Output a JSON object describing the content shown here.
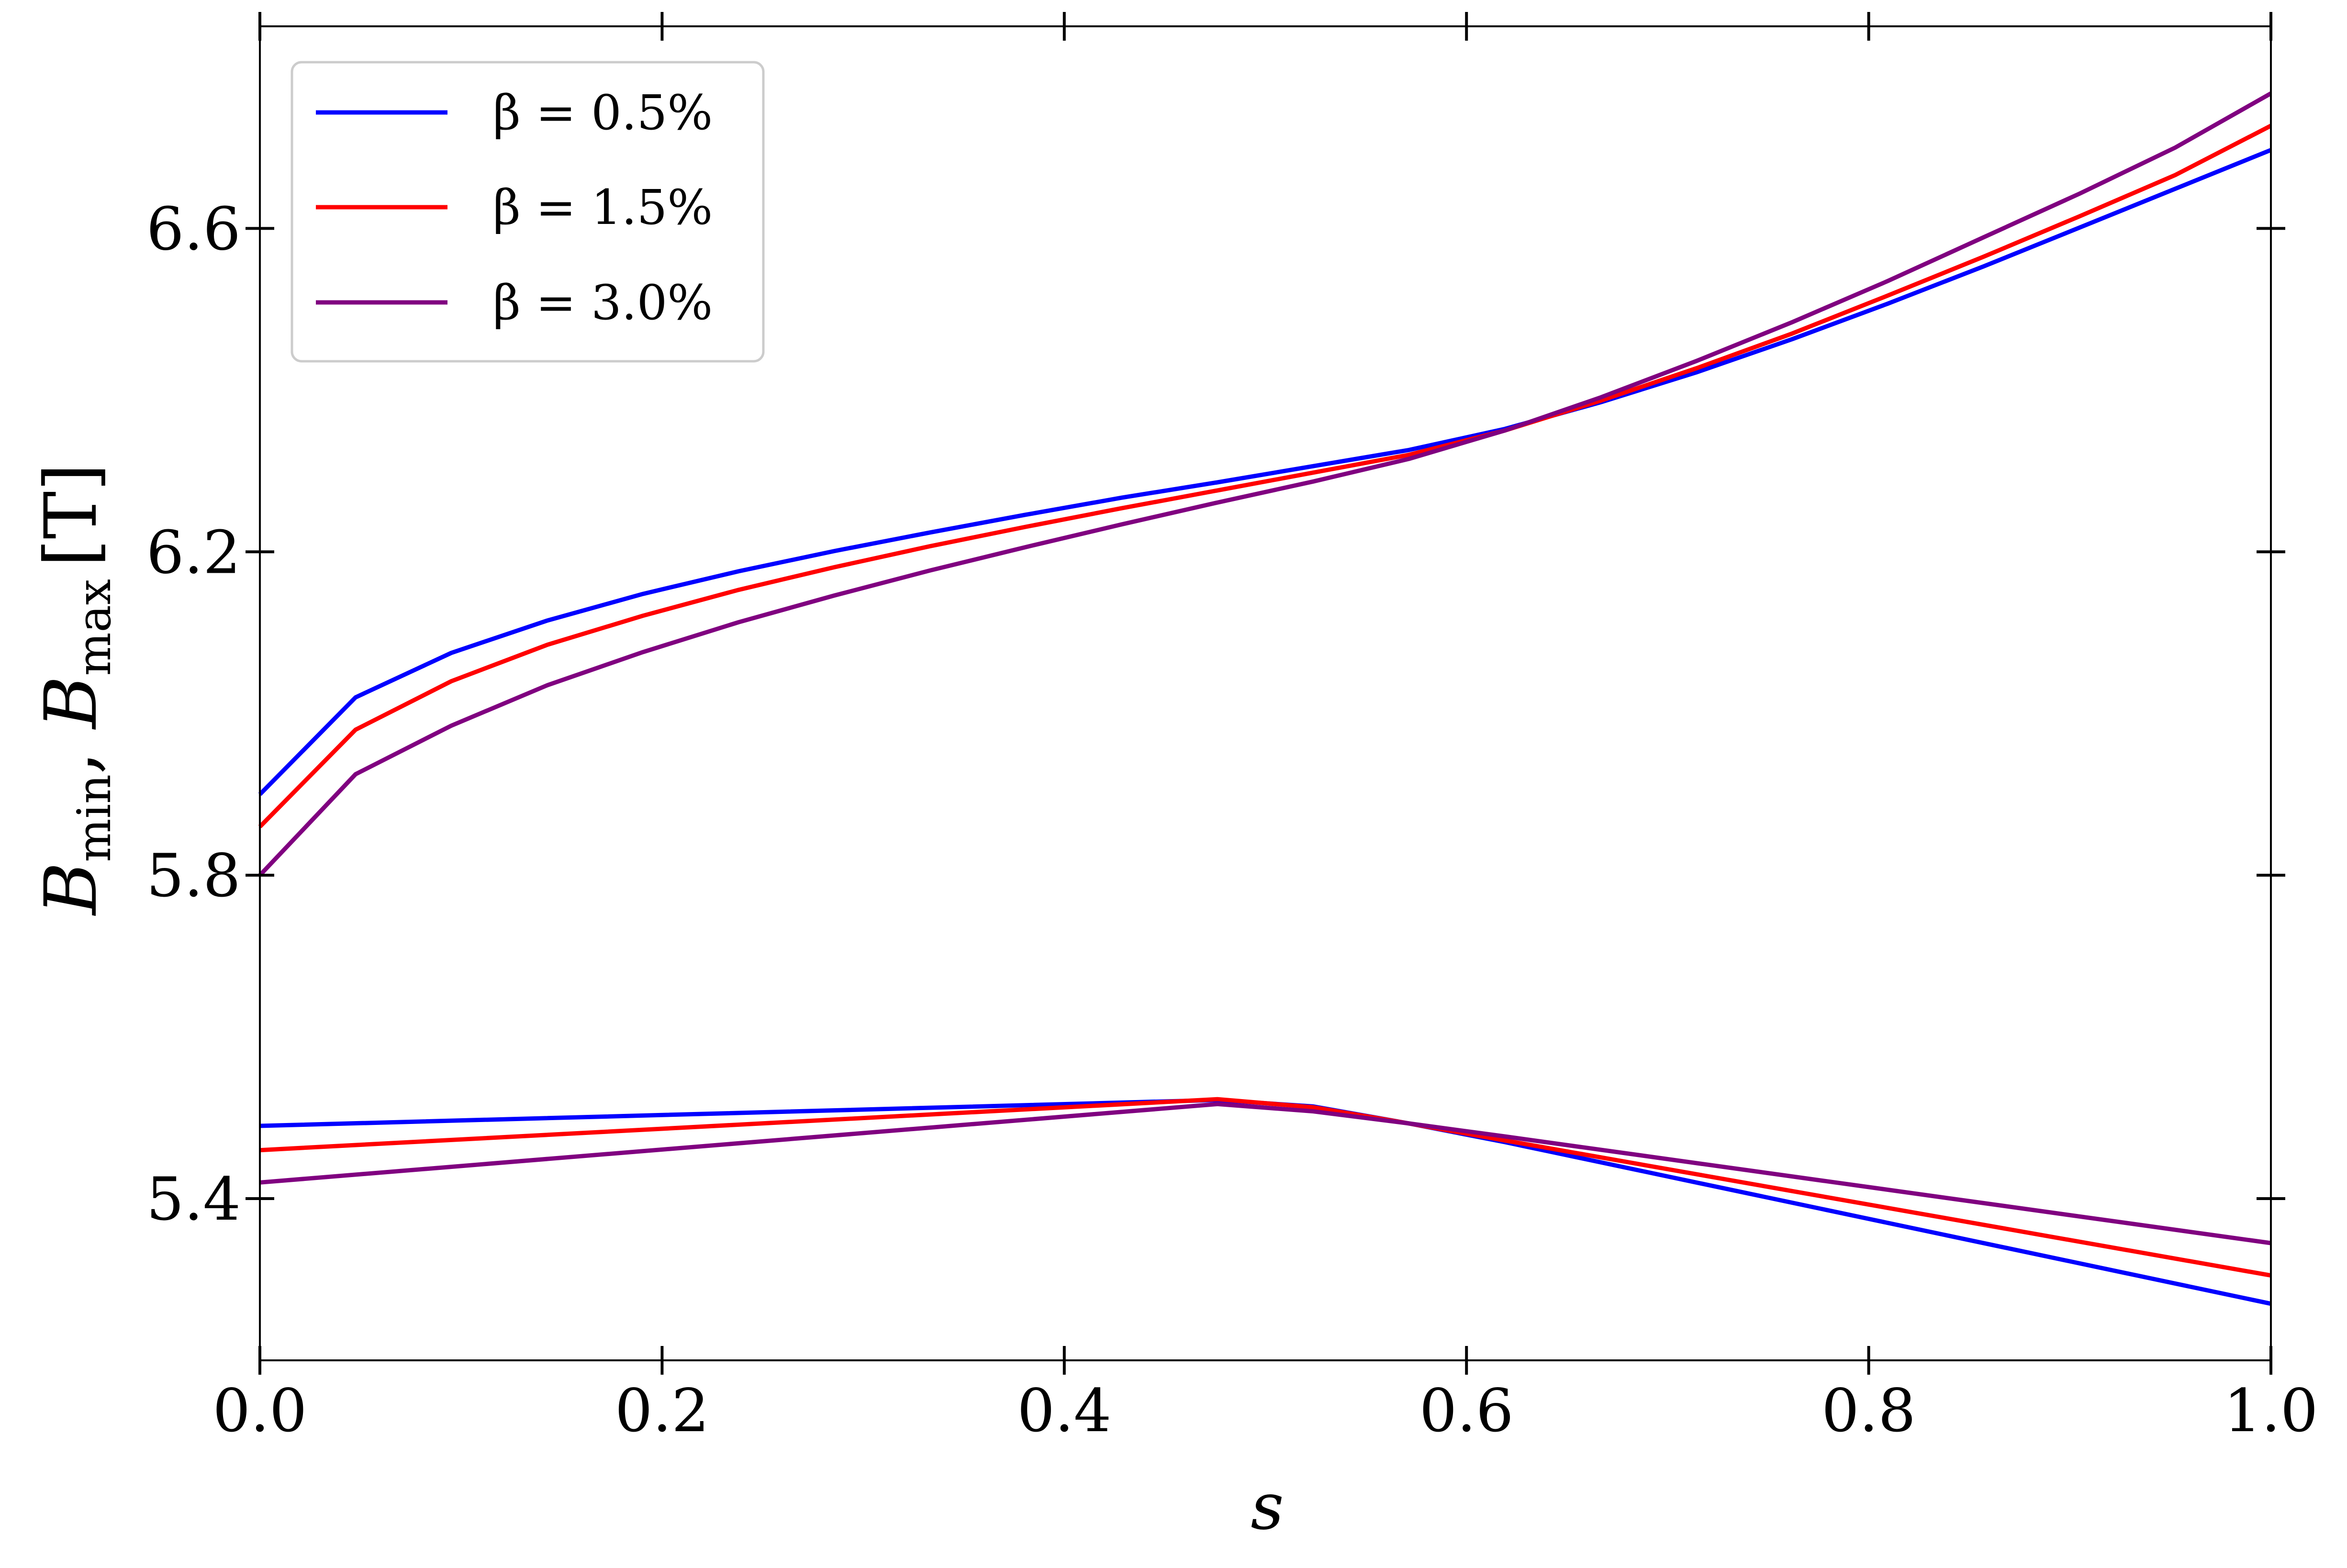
{
  "chart_data": {
    "type": "line",
    "xlabel": "s",
    "ylabel": "B_min, B_max [T]",
    "ylabel_parts": {
      "b1": "B",
      "sub1": "min",
      "sep": ", ",
      "b2": "B",
      "sub2": "max",
      "unit": "[T]"
    },
    "xlim": [
      0.0,
      1.0
    ],
    "ylim": [
      5.2,
      6.85
    ],
    "xticks": [
      0.0,
      0.2,
      0.4,
      0.6,
      0.8,
      1.0
    ],
    "xtick_labels": [
      "0.0",
      "0.2",
      "0.4",
      "0.6",
      "0.8",
      "1.0"
    ],
    "yticks": [
      5.4,
      5.8,
      6.2,
      6.6
    ],
    "ytick_labels": [
      "5.4",
      "5.8",
      "6.2",
      "6.6"
    ],
    "grid": false,
    "legend_position": "top-left",
    "series": [
      {
        "name": "β = 0.5%",
        "color": "#0000ff",
        "bmax": {
          "x": [
            0.0,
            0.0476,
            0.0952,
            0.1429,
            0.1905,
            0.2381,
            0.2857,
            0.3333,
            0.381,
            0.4286,
            0.4762,
            0.5238,
            0.5714,
            0.619,
            0.6667,
            0.7143,
            0.7619,
            0.8095,
            0.8571,
            0.9048,
            0.9524,
            1.0
          ],
          "y": [
            5.9,
            6.02,
            6.075,
            6.115,
            6.148,
            6.176,
            6.201,
            6.224,
            6.246,
            6.267,
            6.286,
            6.306,
            6.326,
            6.352,
            6.385,
            6.422,
            6.463,
            6.507,
            6.553,
            6.601,
            6.649,
            6.697
          ]
        },
        "bmin": {
          "x": [
            0.0,
            0.4762,
            0.5238,
            0.5714,
            0.619,
            1.0
          ],
          "y": [
            5.49,
            5.522,
            5.514,
            5.493,
            5.47,
            5.27
          ]
        }
      },
      {
        "name": "β = 1.5%",
        "color": "#ff0000",
        "bmax": {
          "x": [
            0.0,
            0.0476,
            0.0952,
            0.1429,
            0.1905,
            0.2381,
            0.2857,
            0.3333,
            0.381,
            0.4286,
            0.4762,
            0.5238,
            0.5714,
            0.619,
            0.6667,
            0.7143,
            0.7619,
            0.8095,
            0.8571,
            0.9048,
            0.9524,
            1.0
          ],
          "y": [
            5.86,
            5.98,
            6.04,
            6.085,
            6.121,
            6.153,
            6.181,
            6.207,
            6.231,
            6.254,
            6.276,
            6.298,
            6.32,
            6.35,
            6.387,
            6.427,
            6.47,
            6.517,
            6.565,
            6.615,
            6.666,
            6.727
          ]
        },
        "bmin": {
          "x": [
            0.0,
            0.4762,
            0.5238,
            0.5714,
            0.619,
            1.0
          ],
          "y": [
            5.46,
            5.523,
            5.513,
            5.493,
            5.472,
            5.305
          ]
        }
      },
      {
        "name": "β = 3.0%",
        "color": "#800080",
        "bmax": {
          "x": [
            0.0,
            0.0476,
            0.0952,
            0.1429,
            0.1905,
            0.2381,
            0.2857,
            0.3333,
            0.381,
            0.4286,
            0.4762,
            0.5238,
            0.5714,
            0.619,
            0.6667,
            0.7143,
            0.7619,
            0.8095,
            0.8571,
            0.9048,
            0.9524,
            1.0
          ],
          "y": [
            5.8,
            5.925,
            5.985,
            6.035,
            6.076,
            6.113,
            6.146,
            6.177,
            6.206,
            6.234,
            6.261,
            6.287,
            6.315,
            6.35,
            6.391,
            6.436,
            6.484,
            6.535,
            6.589,
            6.643,
            6.7,
            6.767
          ]
        },
        "bmin": {
          "x": [
            0.0,
            0.4762,
            0.5238,
            0.5714,
            0.619,
            1.0
          ],
          "y": [
            5.42,
            5.517,
            5.508,
            5.493,
            5.477,
            5.345
          ]
        }
      }
    ]
  }
}
